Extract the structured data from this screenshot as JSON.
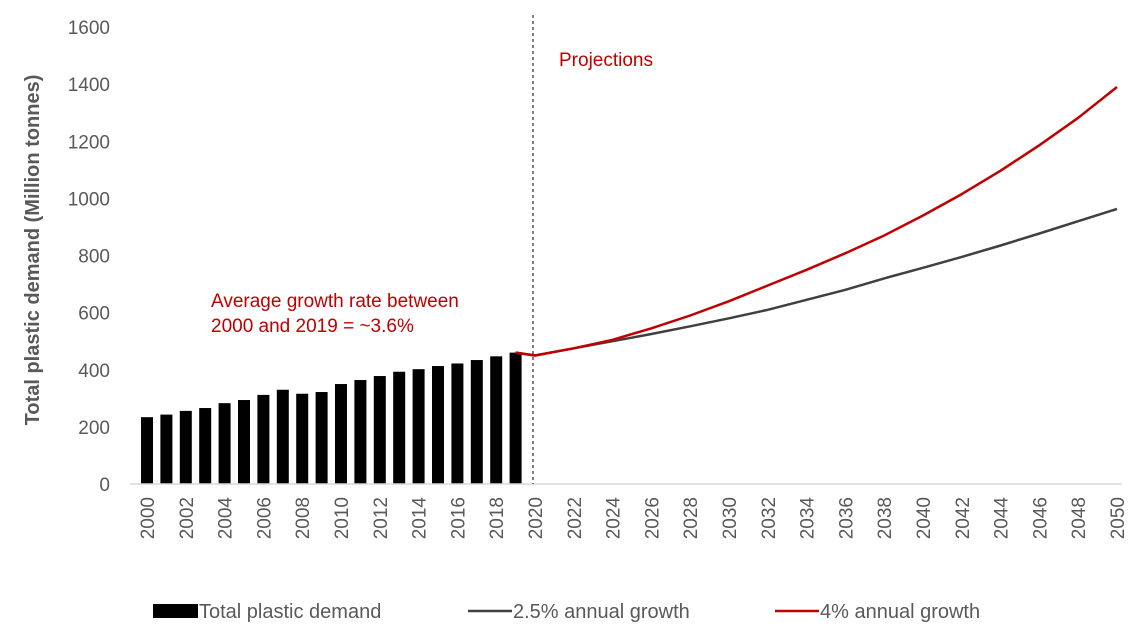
{
  "chart_data": {
    "type": "bar+line",
    "title": "",
    "xlabel": "",
    "ylabel": "Total plastic demand (Million tonnes)",
    "ylim": [
      0,
      1600
    ],
    "yticks": [
      0,
      200,
      400,
      600,
      800,
      1000,
      1200,
      1400,
      1600
    ],
    "xlim": [
      2000,
      2050
    ],
    "xticks": [
      2000,
      2002,
      2004,
      2006,
      2008,
      2010,
      2012,
      2014,
      2016,
      2018,
      2020,
      2022,
      2024,
      2026,
      2028,
      2030,
      2032,
      2034,
      2036,
      2038,
      2040,
      2042,
      2044,
      2046,
      2048,
      2050
    ],
    "grid": false,
    "legend_position": "bottom",
    "bars": {
      "name": "Total plastic demand",
      "color": "#000000",
      "x": [
        2000,
        2001,
        2002,
        2003,
        2004,
        2005,
        2006,
        2007,
        2008,
        2009,
        2010,
        2011,
        2012,
        2013,
        2014,
        2015,
        2016,
        2017,
        2018,
        2019
      ],
      "values": [
        234,
        243,
        256,
        266,
        283,
        294,
        312,
        330,
        316,
        322,
        350,
        364,
        378,
        393,
        402,
        413,
        422,
        434,
        447,
        460
      ]
    },
    "series": [
      {
        "name": "2.5% annual growth",
        "color": "#404040",
        "x": [
          2019,
          2020,
          2022,
          2024,
          2026,
          2028,
          2030,
          2032,
          2034,
          2036,
          2038,
          2040,
          2042,
          2044,
          2046,
          2048,
          2050
        ],
        "values": [
          460,
          450,
          475,
          500,
          525,
          552,
          580,
          610,
          645,
          680,
          720,
          757,
          795,
          835,
          877,
          920,
          963
        ]
      },
      {
        "name": "4% annual growth",
        "color": "#c00000",
        "x": [
          2019,
          2020,
          2022,
          2024,
          2026,
          2028,
          2030,
          2032,
          2034,
          2036,
          2038,
          2040,
          2042,
          2044,
          2046,
          2048,
          2050
        ],
        "values": [
          460,
          450,
          475,
          505,
          545,
          590,
          640,
          695,
          750,
          808,
          870,
          940,
          1015,
          1097,
          1186,
          1282,
          1390
        ]
      }
    ],
    "divider": {
      "x": 2020,
      "label": "Projections"
    },
    "annotation": {
      "line1": "Average growth rate between",
      "line2": "2000 and 2019 = ~3.6%"
    }
  }
}
